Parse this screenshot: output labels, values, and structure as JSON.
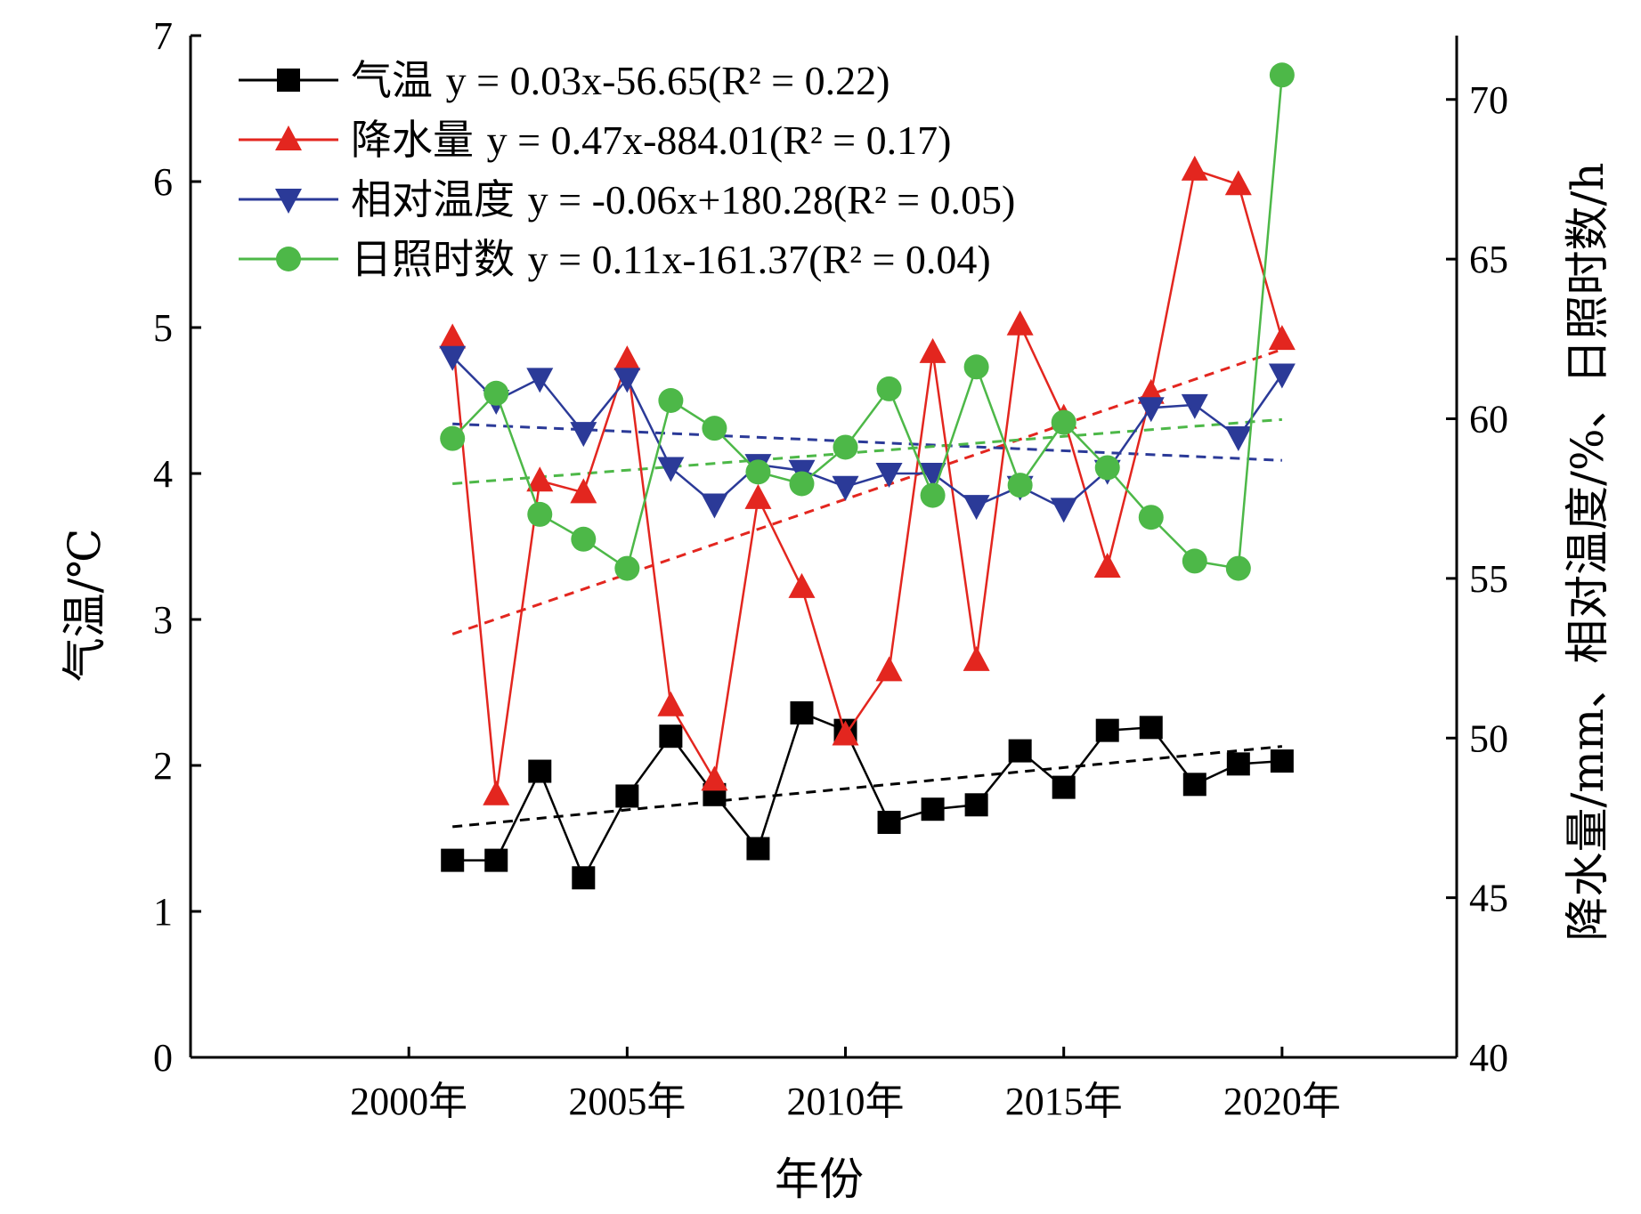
{
  "chart_data": {
    "type": "line",
    "xlabel": "年份",
    "ylabel_left": "气温/℃",
    "ylabel_right": "降水量/mm、相对温度/%、日照时数/h",
    "xlim": [
      1995,
      2024
    ],
    "x_ticks": [
      2000,
      2005,
      2010,
      2015,
      2020
    ],
    "x_tick_labels": [
      "2000年",
      "2005年",
      "2010年",
      "2015年",
      "2020年"
    ],
    "ylim_left": [
      0,
      7
    ],
    "y_ticks_left": [
      0,
      1,
      2,
      3,
      4,
      5,
      6,
      7
    ],
    "ylim_right": [
      40,
      72
    ],
    "y_ticks_right": [
      40,
      45,
      50,
      55,
      60,
      65,
      70
    ],
    "grid": false,
    "legend_position": "top-left",
    "x": [
      2001,
      2002,
      2003,
      2004,
      2005,
      2006,
      2007,
      2008,
      2009,
      2010,
      2011,
      2012,
      2013,
      2014,
      2015,
      2016,
      2017,
      2018,
      2019,
      2020
    ],
    "series": [
      {
        "name": "气温",
        "equation": "y = 0.03x-56.65(R² = 0.22)",
        "axis": "left",
        "color": "#000000",
        "marker": "square",
        "values": [
          1.35,
          1.35,
          1.96,
          1.23,
          1.79,
          2.2,
          1.8,
          1.43,
          2.36,
          2.24,
          1.61,
          1.7,
          1.73,
          2.1,
          1.85,
          2.24,
          2.26,
          1.87,
          2.01,
          2.03
        ],
        "trend": [
          1.58,
          2.13
        ]
      },
      {
        "name": "降水量",
        "equation": "y = 0.47x-884.01(R² = 0.17)",
        "axis": "left",
        "color": "#e3261f",
        "marker": "triangle-up",
        "values": [
          4.93,
          1.8,
          3.95,
          3.87,
          4.78,
          2.41,
          1.9,
          3.83,
          3.22,
          2.21,
          2.65,
          4.83,
          2.72,
          5.02,
          4.38,
          3.36,
          4.55,
          6.08,
          5.98,
          4.92
        ],
        "trend": [
          2.9,
          4.85
        ]
      },
      {
        "name": "相对温度",
        "equation": "y = -0.06x+180.28(R² = 0.05)",
        "axis": "left",
        "color": "#2b3a98",
        "marker": "triangle-down",
        "values": [
          4.8,
          4.5,
          4.65,
          4.28,
          4.65,
          4.04,
          3.79,
          4.06,
          4.02,
          3.91,
          4.0,
          4.0,
          3.78,
          3.91,
          3.76,
          4.02,
          4.45,
          4.47,
          4.25,
          4.68
        ],
        "trend": [
          4.34,
          4.09
        ]
      },
      {
        "name": "日照时数",
        "equation": "y = 0.11x-161.37(R² = 0.04)",
        "axis": "left",
        "color": "#4db848",
        "marker": "circle",
        "values": [
          4.24,
          4.55,
          3.72,
          3.55,
          3.35,
          4.5,
          4.31,
          4.01,
          3.93,
          4.18,
          4.58,
          3.85,
          4.73,
          3.92,
          4.35,
          4.04,
          3.7,
          3.4,
          3.35,
          6.73
        ],
        "trend": [
          3.93,
          4.37
        ]
      }
    ]
  }
}
